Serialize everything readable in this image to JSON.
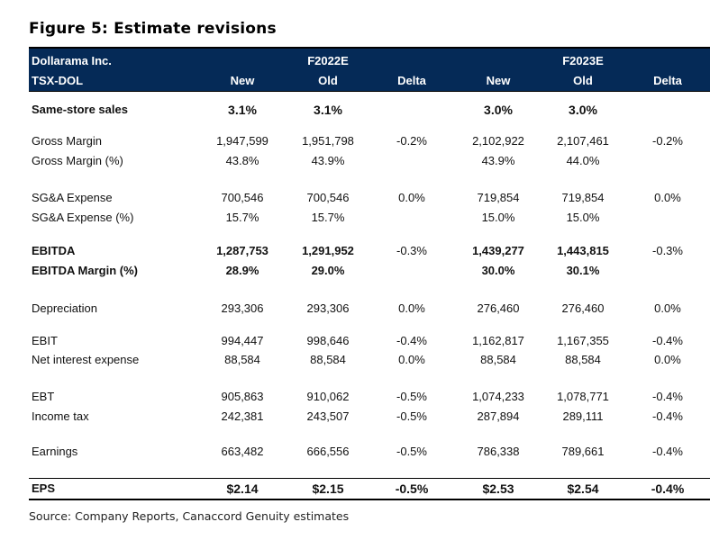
{
  "figure_title": "Figure 5: Estimate revisions",
  "header": {
    "company": "Dollarama Inc.",
    "ticker": "TSX-DOL",
    "period1": "F2022E",
    "period2": "F2023E",
    "col_new": "New",
    "col_old": "Old",
    "col_delta": "Delta"
  },
  "rows": [
    {
      "label": "Same-store sales",
      "f22_new": "3.1%",
      "f22_old": "3.1%",
      "f22_delta": "",
      "f23_new": "3.0%",
      "f23_old": "3.0%",
      "f23_delta": ""
    },
    {
      "label": "Gross Margin",
      "f22_new": "1,947,599",
      "f22_old": "1,951,798",
      "f22_delta": "-0.2%",
      "f23_new": "2,102,922",
      "f23_old": "2,107,461",
      "f23_delta": "-0.2%"
    },
    {
      "label": "Gross Margin (%)",
      "f22_new": "43.8%",
      "f22_old": "43.9%",
      "f22_delta": "",
      "f23_new": "43.9%",
      "f23_old": "44.0%",
      "f23_delta": ""
    },
    {
      "label": "SG&A Expense",
      "f22_new": "700,546",
      "f22_old": "700,546",
      "f22_delta": "0.0%",
      "f23_new": "719,854",
      "f23_old": "719,854",
      "f23_delta": "0.0%"
    },
    {
      "label": "SG&A Expense (%)",
      "f22_new": "15.7%",
      "f22_old": "15.7%",
      "f22_delta": "",
      "f23_new": "15.0%",
      "f23_old": "15.0%",
      "f23_delta": ""
    },
    {
      "label": "EBITDA",
      "f22_new": "1,287,753",
      "f22_old": "1,291,952",
      "f22_delta": "-0.3%",
      "f23_new": "1,439,277",
      "f23_old": "1,443,815",
      "f23_delta": "-0.3%"
    },
    {
      "label": "EBITDA Margin (%)",
      "f22_new": "28.9%",
      "f22_old": "29.0%",
      "f22_delta": "",
      "f23_new": "30.0%",
      "f23_old": "30.1%",
      "f23_delta": ""
    },
    {
      "label": "Depreciation",
      "f22_new": "293,306",
      "f22_old": "293,306",
      "f22_delta": "0.0%",
      "f23_new": "276,460",
      "f23_old": "276,460",
      "f23_delta": "0.0%"
    },
    {
      "label": "EBIT",
      "f22_new": "994,447",
      "f22_old": "998,646",
      "f22_delta": "-0.4%",
      "f23_new": "1,162,817",
      "f23_old": "1,167,355",
      "f23_delta": "-0.4%"
    },
    {
      "label": "Net interest expense",
      "f22_new": "88,584",
      "f22_old": "88,584",
      "f22_delta": "0.0%",
      "f23_new": "88,584",
      "f23_old": "88,584",
      "f23_delta": "0.0%"
    },
    {
      "label": "EBT",
      "f22_new": "905,863",
      "f22_old": "910,062",
      "f22_delta": "-0.5%",
      "f23_new": "1,074,233",
      "f23_old": "1,078,771",
      "f23_delta": "-0.4%"
    },
    {
      "label": "Income tax",
      "f22_new": "242,381",
      "f22_old": "243,507",
      "f22_delta": "-0.5%",
      "f23_new": "287,894",
      "f23_old": "289,111",
      "f23_delta": "-0.4%"
    },
    {
      "label": "Earnings",
      "f22_new": "663,482",
      "f22_old": "666,556",
      "f22_delta": "-0.5%",
      "f23_new": "786,338",
      "f23_old": "789,661",
      "f23_delta": "-0.4%"
    },
    {
      "label": "EPS",
      "f22_new": "$2.14",
      "f22_old": "$2.15",
      "f22_delta": "-0.5%",
      "f23_new": "$2.53",
      "f23_old": "$2.54",
      "f23_delta": "-0.4%"
    }
  ],
  "source": "Source: Company Reports, Canaccord Genuity estimates"
}
